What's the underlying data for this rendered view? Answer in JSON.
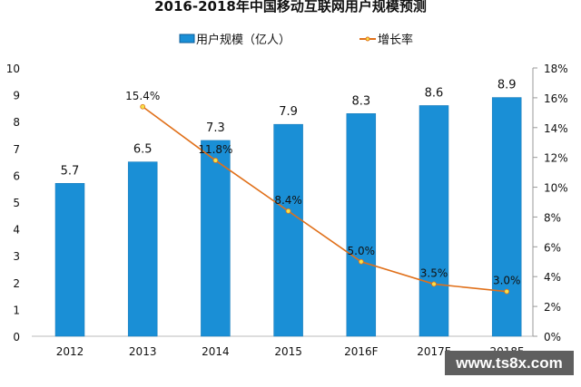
{
  "chart_data": {
    "type": "bar+line",
    "title": "2016-2018年中国移动互联网用户规模预测",
    "categories": [
      "2012",
      "2013",
      "2014",
      "2015",
      "2016F",
      "2017F",
      "2018F"
    ],
    "series": [
      {
        "name": "用户规模（亿人）",
        "type": "bar",
        "axis": "left",
        "color": "#1a8fd6",
        "values": [
          5.7,
          6.5,
          7.3,
          7.9,
          8.3,
          8.6,
          8.9
        ],
        "labels": [
          "5.7",
          "6.5",
          "7.3",
          "7.9",
          "8.3",
          "8.6",
          "8.9"
        ]
      },
      {
        "name": "增长率",
        "type": "line",
        "axis": "right",
        "color": "#e0701a",
        "marker_color": "#f5e24a",
        "values": [
          null,
          15.4,
          11.8,
          8.4,
          5.0,
          3.5,
          3.0
        ],
        "labels": [
          null,
          "15.4%",
          "11.8%",
          "8.4%",
          "5.0%",
          "3.5%",
          "3.0%"
        ]
      }
    ],
    "ylim_left": [
      0,
      10
    ],
    "yticks_left": [
      "0",
      "1",
      "2",
      "3",
      "4",
      "5",
      "6",
      "7",
      "8",
      "9",
      "10"
    ],
    "ylim_right": [
      0,
      18
    ],
    "yticks_right": [
      "0%",
      "2%",
      "4%",
      "6%",
      "8%",
      "10%",
      "12%",
      "14%",
      "16%",
      "18%"
    ],
    "legend_placement": "top-center",
    "grid": false
  },
  "watermark": "www.ts8x.com"
}
